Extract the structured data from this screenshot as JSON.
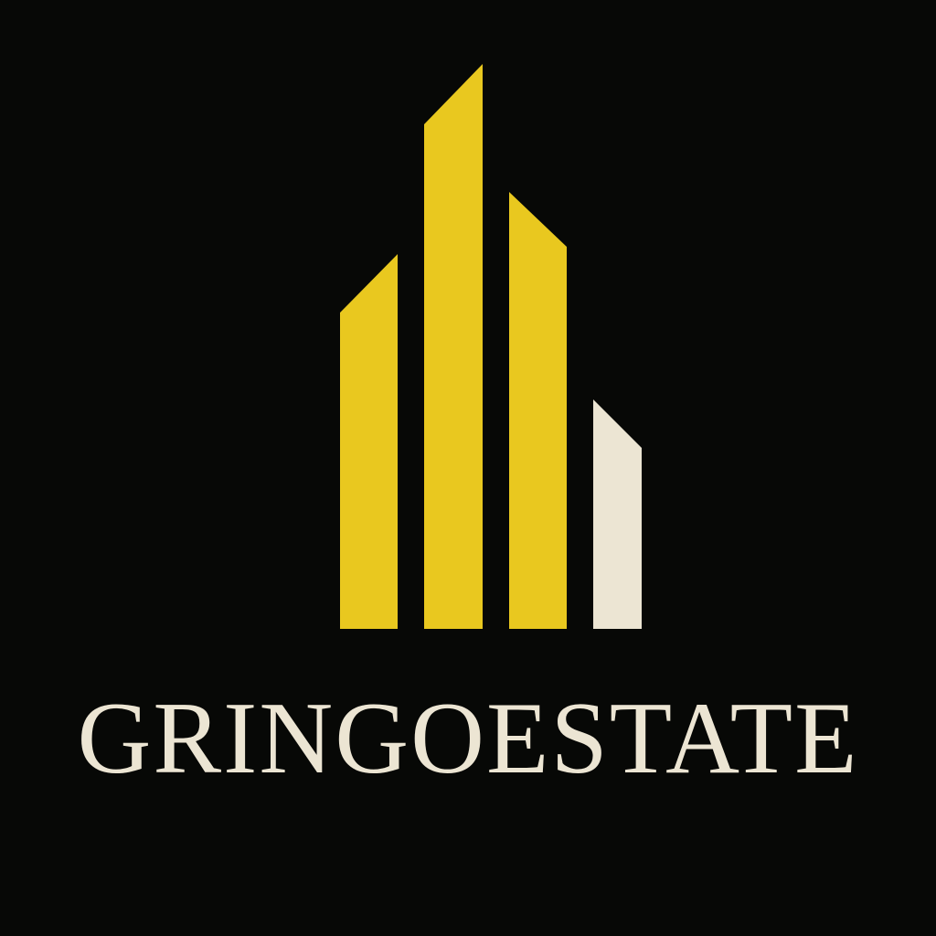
{
  "brand": {
    "name": "GRINGOESTATE"
  },
  "colors": {
    "background": "#070806",
    "accent_yellow": "#E9C81F",
    "cream": "#ECE5D3"
  },
  "icons": {
    "logo": "skyline-bars-icon"
  }
}
